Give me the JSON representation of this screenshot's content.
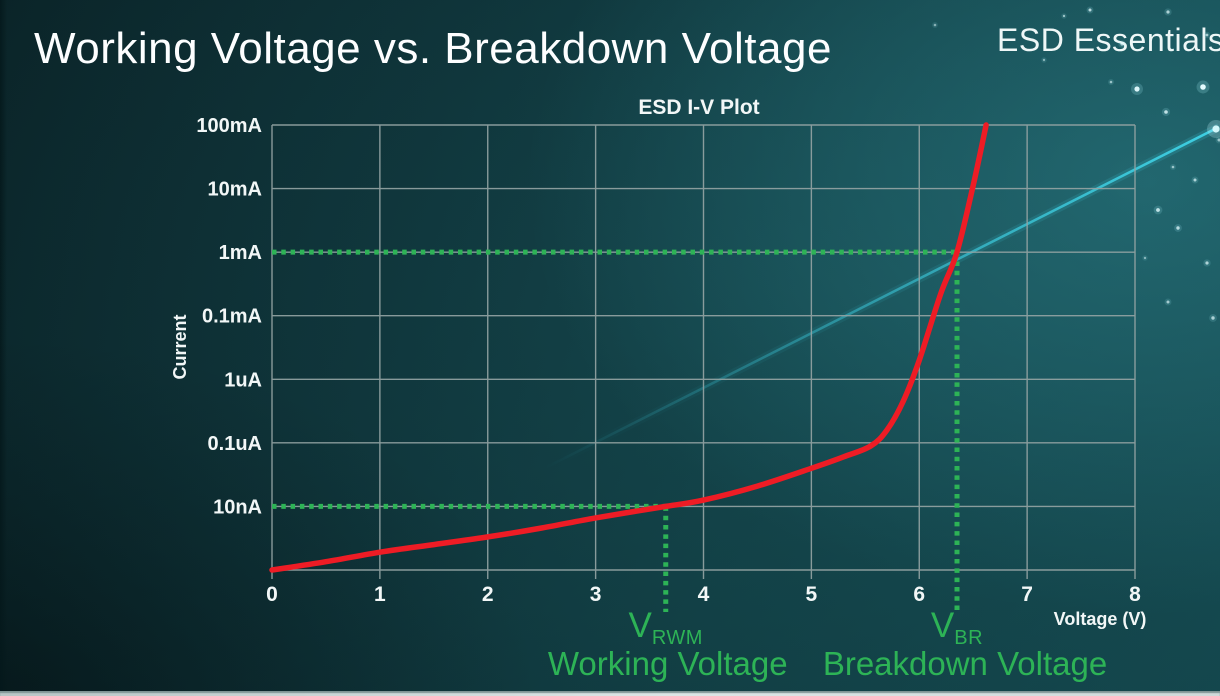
{
  "header": {
    "title": "Working Voltage vs. Breakdown Voltage",
    "brand": "ESD Essentials"
  },
  "colors": {
    "background_teal": "#0f383d",
    "accent_green": "#2db356",
    "curve_red": "#ee1c25",
    "grid_gray": "#93a3a3",
    "text_white": "#f2f7f7",
    "streak_cyan": "#3fd4e8"
  },
  "chart_data": {
    "type": "line",
    "title": "ESD I-V Plot",
    "xlabel": "Voltage (V)",
    "ylabel": "Current",
    "xlim": [
      0,
      8
    ],
    "x_ticks": [
      0,
      1,
      2,
      3,
      4,
      5,
      6,
      7,
      8
    ],
    "y_tick_labels_top_to_bottom": [
      "100mA",
      "10mA",
      "1mA",
      "0.1mA",
      "1uA",
      "0.1uA",
      "10nA"
    ],
    "y_scale": "log-style: one equal axis division per labeled gridline, unlabeled bottom division below 10nA",
    "grid": true,
    "legend": "none",
    "series": [
      {
        "name": "ESD device I-V curve",
        "color": "#ee1c25",
        "row_definition": "axis divisions above bottom axis: bottom=0, 10nA=1, 0.1uA=2, 1uA=3, 0.1mA=4, 1mA=5, 10mA=6, 100mA=7",
        "points_v_row": [
          [
            0,
            0
          ],
          [
            0.5,
            0.13
          ],
          [
            1,
            0.28
          ],
          [
            1.5,
            0.4
          ],
          [
            2,
            0.52
          ],
          [
            2.5,
            0.66
          ],
          [
            3,
            0.82
          ],
          [
            3.65,
            1.0
          ],
          [
            4,
            1.1
          ],
          [
            4.5,
            1.32
          ],
          [
            5,
            1.6
          ],
          [
            5.3,
            1.78
          ],
          [
            5.55,
            1.95
          ],
          [
            5.7,
            2.2
          ],
          [
            5.85,
            2.65
          ],
          [
            6.0,
            3.3
          ],
          [
            6.2,
            4.35
          ],
          [
            6.35,
            5.0
          ],
          [
            6.5,
            6.05
          ],
          [
            6.62,
            7.0
          ]
        ]
      }
    ],
    "markers": [
      {
        "symbol_base": "V",
        "symbol_sub": "RWM",
        "caption": "Working Voltage",
        "voltage": 3.65,
        "current": "10nA"
      },
      {
        "symbol_base": "V",
        "symbol_sub": "BR",
        "caption": "Breakdown Voltage",
        "voltage": 6.35,
        "current": "1mA"
      }
    ]
  }
}
